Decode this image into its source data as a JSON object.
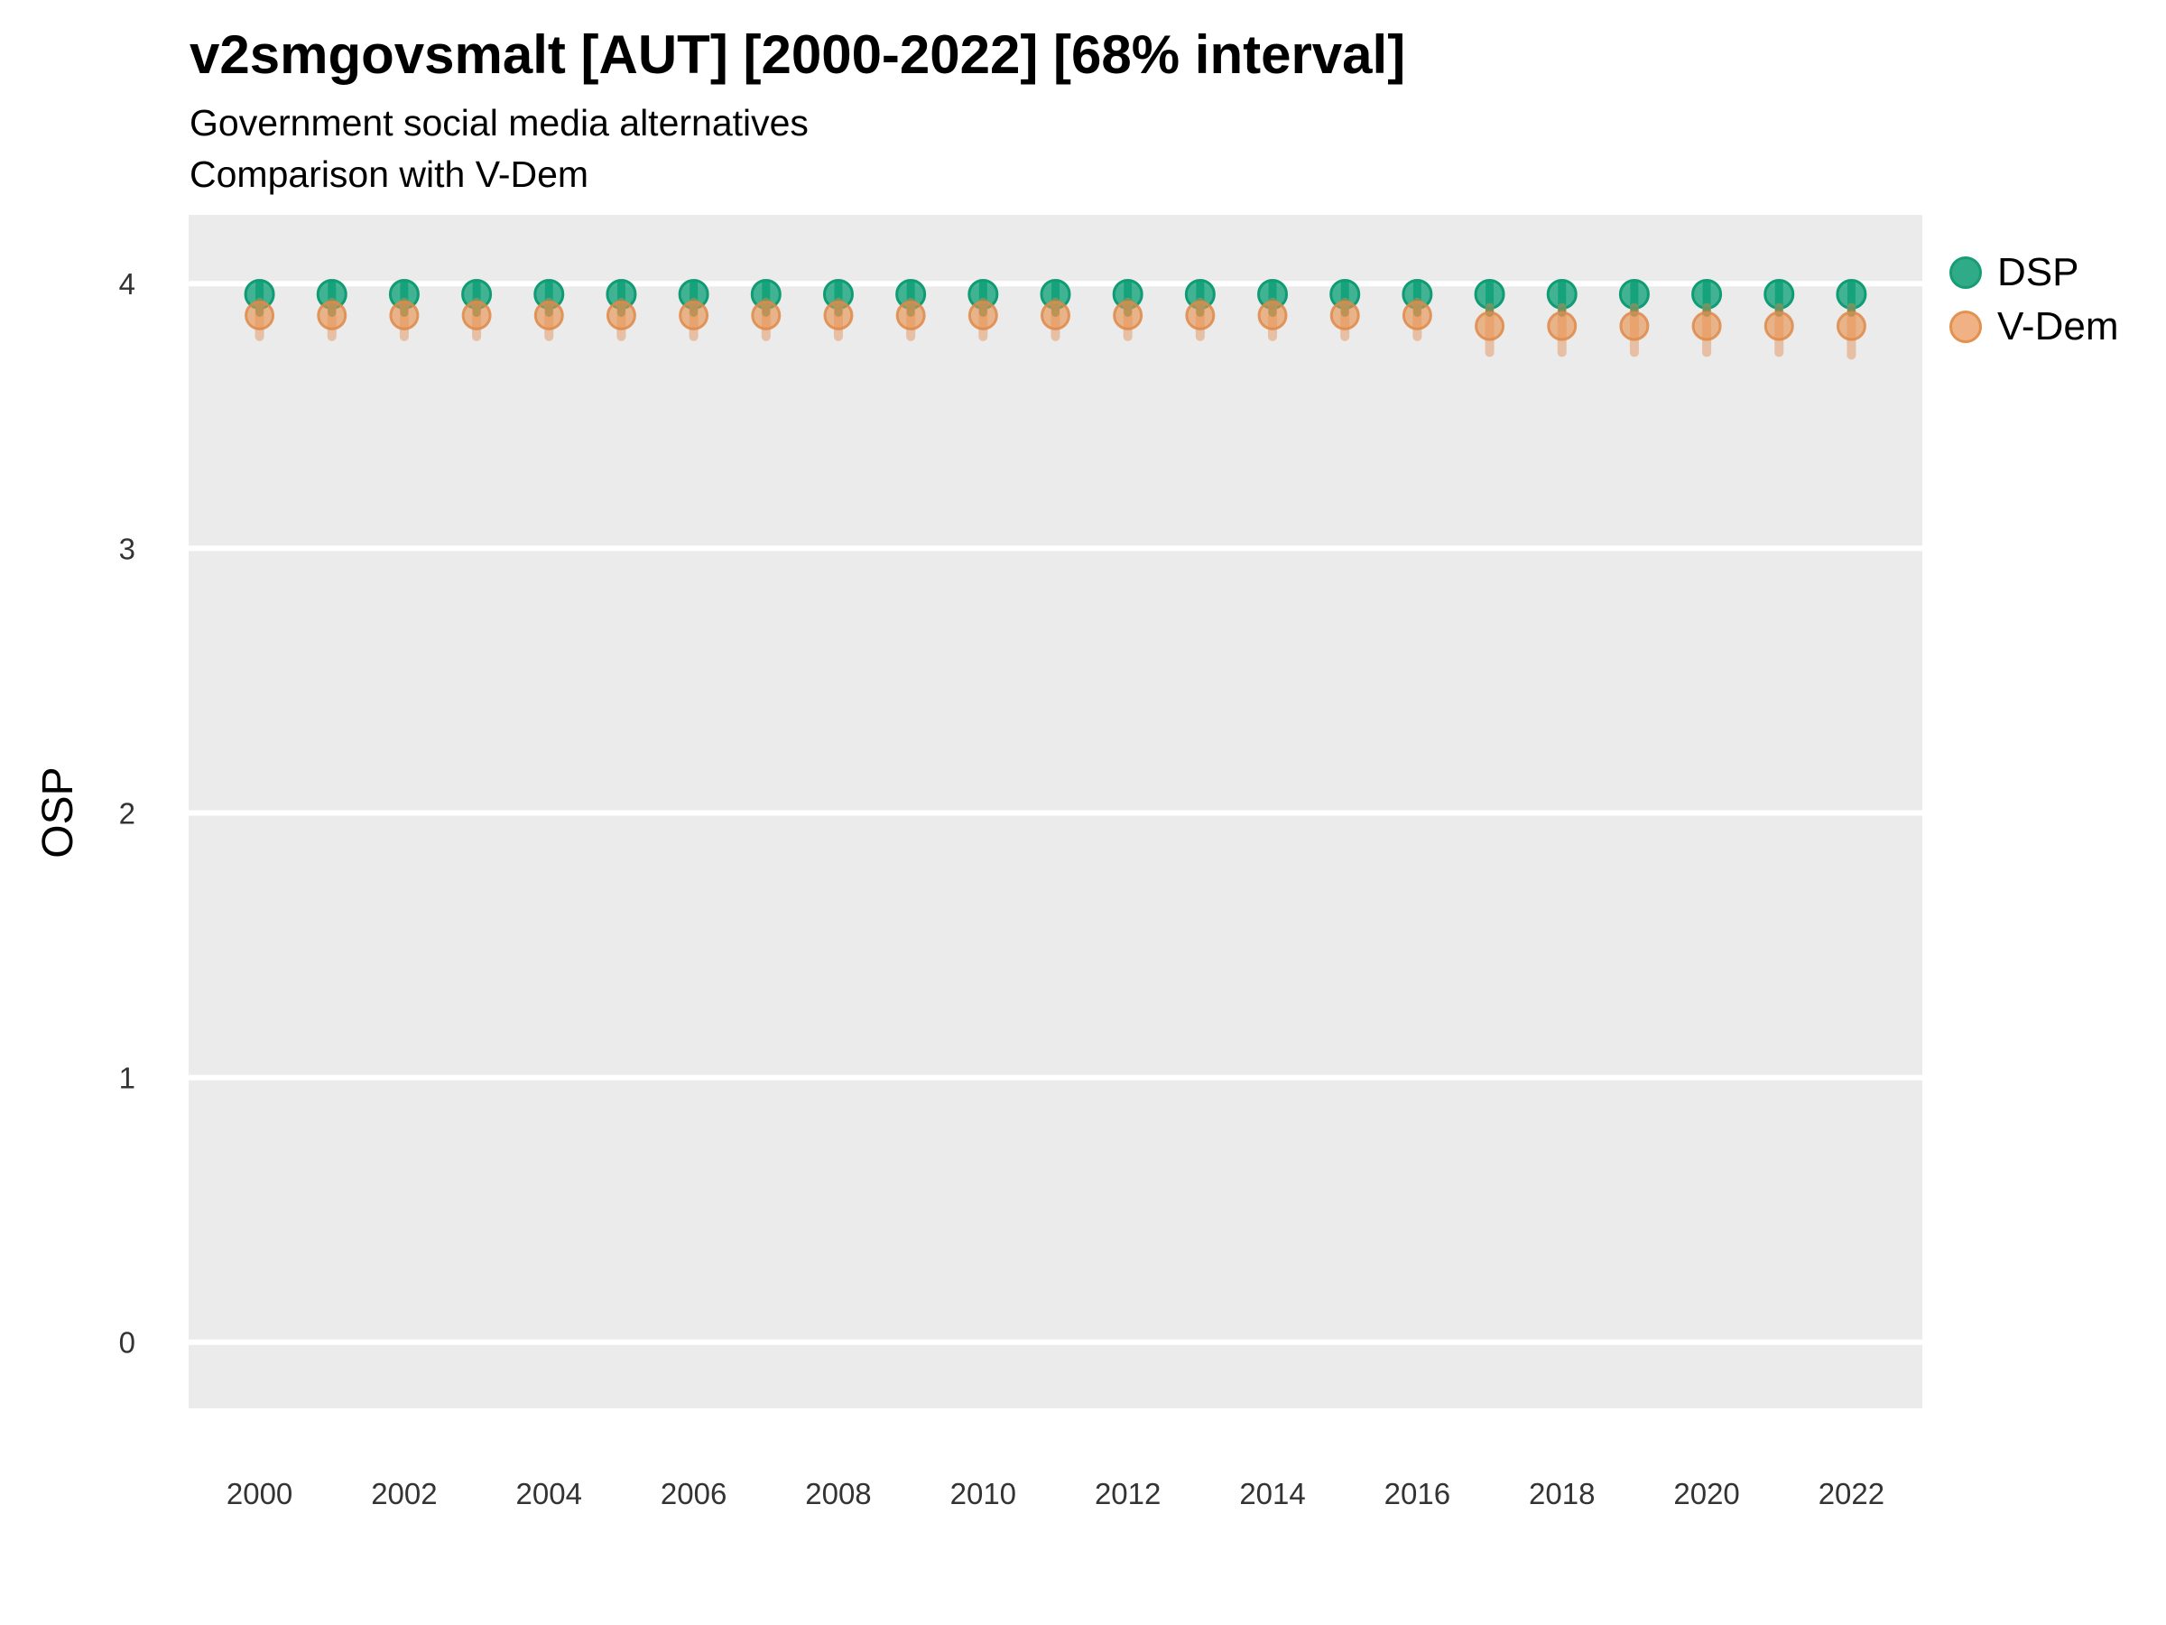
{
  "header": {
    "title": "v2smgovsmalt [AUT] [2000-2022] [68% interval]",
    "subtitle_line1": "Government social media alternatives",
    "subtitle_line2": "Comparison with V-Dem"
  },
  "axes": {
    "y_title": "OSP",
    "y_tick_labels": [
      "0",
      "1",
      "2",
      "3",
      "4"
    ],
    "y_tick_values": [
      0,
      1,
      2,
      3,
      4
    ],
    "x_tick_labels": [
      "2000",
      "2002",
      "2004",
      "2006",
      "2008",
      "2010",
      "2012",
      "2014",
      "2016",
      "2018",
      "2020",
      "2022"
    ],
    "x_tick_values": [
      2000,
      2002,
      2004,
      2006,
      2008,
      2010,
      2012,
      2014,
      2016,
      2018,
      2020,
      2022
    ]
  },
  "legend": {
    "items": [
      {
        "label": "DSP",
        "fill": "#2FAB88",
        "stroke": "#179D76"
      },
      {
        "label": "V-Dem",
        "fill": "#F0B285",
        "stroke": "#E2914F"
      }
    ]
  },
  "colors": {
    "panel_background": "#EBEBEB",
    "gridline": "#FFFFFF",
    "axis_text": "#333333"
  },
  "chart_data": {
    "type": "scatter",
    "title": "v2smgovsmalt [AUT] [2000-2022] [68% interval]",
    "subtitle": "Government social media alternatives",
    "subtitle2": "Comparison with V-Dem",
    "interval": "68%",
    "xlabel": "",
    "ylabel": "OSP",
    "xlim": [
      1999.02,
      2022.98
    ],
    "ylim": [
      -0.25,
      4.26
    ],
    "grid": "major-horizontal-only",
    "legend_position": "right",
    "x": [
      2000,
      2001,
      2002,
      2003,
      2004,
      2005,
      2006,
      2007,
      2008,
      2009,
      2010,
      2011,
      2012,
      2013,
      2014,
      2015,
      2016,
      2017,
      2018,
      2019,
      2020,
      2021,
      2022
    ],
    "series": [
      {
        "name": "DSP",
        "color_bar": "#0C9B72",
        "color_fill": "#17A47C",
        "color_stroke": "#0F9C74",
        "values": [
          3.96,
          3.96,
          3.96,
          3.96,
          3.96,
          3.96,
          3.96,
          3.96,
          3.96,
          3.96,
          3.96,
          3.96,
          3.96,
          3.96,
          3.96,
          3.96,
          3.96,
          3.96,
          3.96,
          3.96,
          3.96,
          3.96,
          3.96
        ],
        "ci_low": [
          3.89,
          3.89,
          3.89,
          3.89,
          3.89,
          3.89,
          3.89,
          3.89,
          3.89,
          3.89,
          3.89,
          3.89,
          3.89,
          3.89,
          3.89,
          3.89,
          3.89,
          3.89,
          3.89,
          3.89,
          3.89,
          3.89,
          3.89
        ],
        "ci_high": [
          4.0,
          4.0,
          4.0,
          4.0,
          4.0,
          4.0,
          4.0,
          4.0,
          4.0,
          4.0,
          4.0,
          4.0,
          4.0,
          4.0,
          4.0,
          4.0,
          4.0,
          4.0,
          4.0,
          4.0,
          4.0,
          4.0,
          4.0
        ]
      },
      {
        "name": "V-Dem",
        "color_bar": "#E0894D",
        "color_fill": "#E8924F",
        "color_stroke": "#DE8A48",
        "values": [
          3.88,
          3.88,
          3.88,
          3.88,
          3.88,
          3.88,
          3.88,
          3.88,
          3.88,
          3.88,
          3.88,
          3.88,
          3.88,
          3.88,
          3.88,
          3.88,
          3.88,
          3.84,
          3.84,
          3.84,
          3.84,
          3.84,
          3.84
        ],
        "ci_low": [
          3.8,
          3.8,
          3.8,
          3.8,
          3.8,
          3.8,
          3.8,
          3.8,
          3.8,
          3.8,
          3.8,
          3.8,
          3.8,
          3.8,
          3.8,
          3.8,
          3.8,
          3.74,
          3.74,
          3.74,
          3.74,
          3.74,
          3.73
        ],
        "ci_high": [
          3.93,
          3.93,
          3.93,
          3.93,
          3.93,
          3.93,
          3.93,
          3.93,
          3.93,
          3.93,
          3.93,
          3.93,
          3.93,
          3.93,
          3.93,
          3.93,
          3.93,
          3.91,
          3.91,
          3.91,
          3.91,
          3.91,
          3.91
        ]
      }
    ]
  }
}
